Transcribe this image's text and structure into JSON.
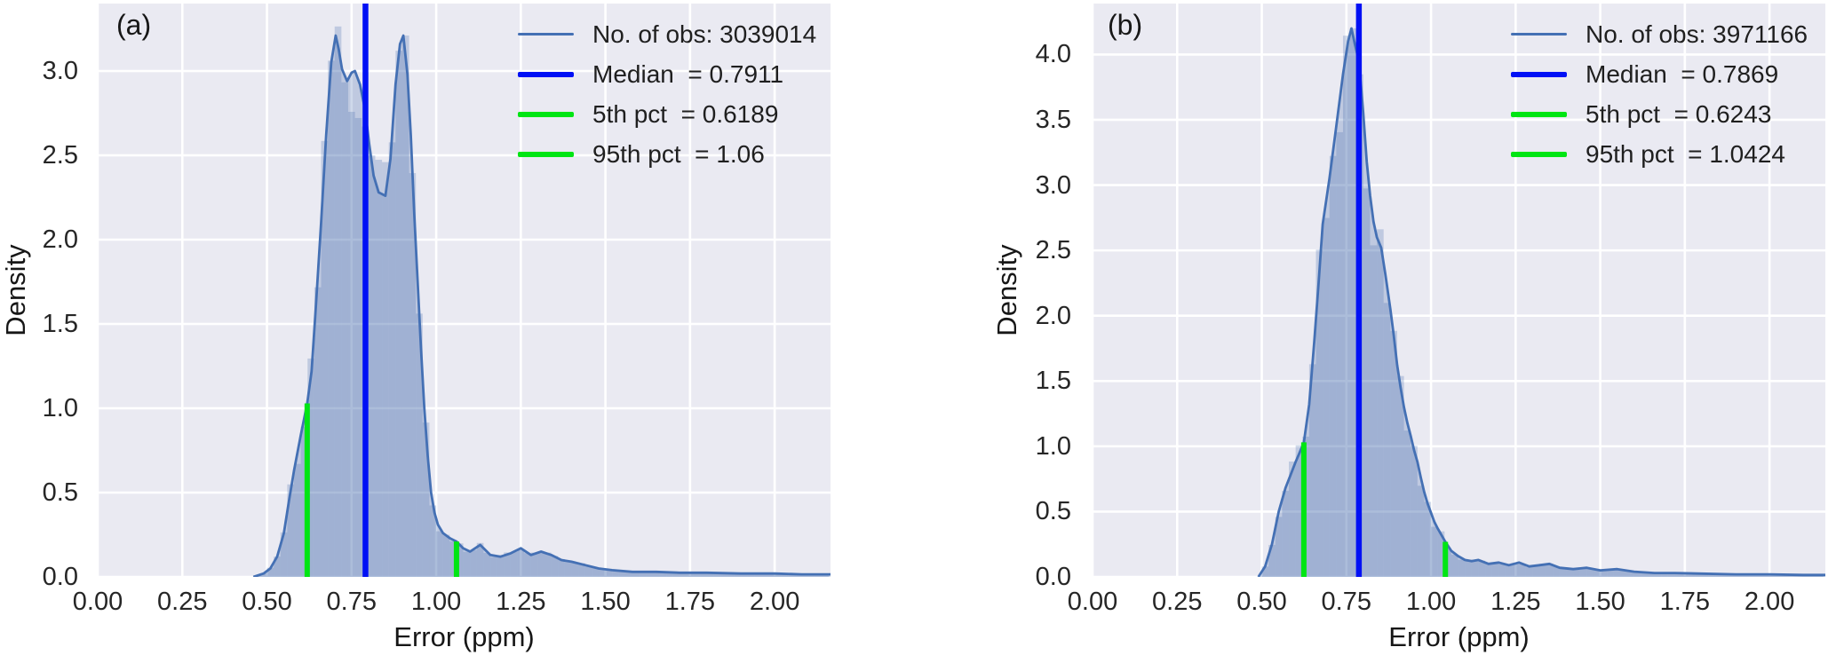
{
  "colors": {
    "figure_bg": "#ffffff",
    "plot_bg": "#eaeaf2",
    "grid": "#ffffff",
    "hist_fill": "rgba(76,114,176,0.27)",
    "kde_fill": "rgba(76,114,176,0.27)",
    "kde_line": "#4470b4",
    "median_line": "#0010f5",
    "pct_line": "#00e513",
    "text": "#262626"
  },
  "chart_data": [
    {
      "type": "area",
      "subtype": "histogram-with-kde-density",
      "panel_label": "(a)",
      "title": "",
      "xlabel": "Error (ppm)",
      "ylabel": "Density",
      "xlim": [
        0,
        2.165
      ],
      "ylim": [
        0,
        3.4
      ],
      "grid": true,
      "legend_position": "upper right",
      "xtick_labels": [
        "0.00",
        "0.25",
        "0.50",
        "0.75",
        "1.00",
        "1.25",
        "1.50",
        "1.75",
        "2.00"
      ],
      "ytick_labels": [
        "0.0",
        "0.5",
        "1.0",
        "1.5",
        "2.0",
        "2.5",
        "3.0"
      ],
      "n_obs": 3039014,
      "median": 0.7911,
      "pct5": 0.6189,
      "pct95": 1.06,
      "hist_bin_width": 0.02,
      "legend": {
        "items": [
          {
            "label": "No. of obs: 3039014",
            "color": "#4470b4",
            "line_weight": "thin"
          },
          {
            "label": "Median  = 0.7911",
            "color": "#0010f5",
            "line_weight": "thick"
          },
          {
            "label": "5th pct  = 0.6189",
            "color": "#00e513",
            "line_weight": "thick"
          },
          {
            "label": "95th pct  = 1.06",
            "color": "#00e513",
            "line_weight": "thick"
          }
        ]
      },
      "kde_points": [
        [
          0.46,
          0
        ],
        [
          0.49,
          0.02
        ],
        [
          0.51,
          0.05
        ],
        [
          0.53,
          0.12
        ],
        [
          0.55,
          0.26
        ],
        [
          0.565,
          0.45
        ],
        [
          0.58,
          0.63
        ],
        [
          0.6,
          0.84
        ],
        [
          0.619,
          1.03
        ],
        [
          0.632,
          1.22
        ],
        [
          0.645,
          1.62
        ],
        [
          0.66,
          2.1
        ],
        [
          0.675,
          2.62
        ],
        [
          0.69,
          3.05
        ],
        [
          0.703,
          3.21
        ],
        [
          0.712,
          3.13
        ],
        [
          0.722,
          3.01
        ],
        [
          0.737,
          2.94
        ],
        [
          0.75,
          2.99
        ],
        [
          0.76,
          3.0
        ],
        [
          0.775,
          2.92
        ],
        [
          0.79,
          2.77
        ],
        [
          0.802,
          2.57
        ],
        [
          0.815,
          2.38
        ],
        [
          0.83,
          2.28
        ],
        [
          0.85,
          2.26
        ],
        [
          0.865,
          2.48
        ],
        [
          0.88,
          2.92
        ],
        [
          0.893,
          3.16
        ],
        [
          0.903,
          3.21
        ],
        [
          0.915,
          2.98
        ],
        [
          0.925,
          2.62
        ],
        [
          0.935,
          2.16
        ],
        [
          0.945,
          1.76
        ],
        [
          0.955,
          1.36
        ],
        [
          0.965,
          1.0
        ],
        [
          0.975,
          0.72
        ],
        [
          0.985,
          0.5
        ],
        [
          0.995,
          0.38
        ],
        [
          1.005,
          0.31
        ],
        [
          1.02,
          0.26
        ],
        [
          1.04,
          0.23
        ],
        [
          1.06,
          0.21
        ],
        [
          1.08,
          0.17
        ],
        [
          1.1,
          0.15
        ],
        [
          1.13,
          0.19
        ],
        [
          1.16,
          0.13
        ],
        [
          1.19,
          0.12
        ],
        [
          1.22,
          0.14
        ],
        [
          1.25,
          0.17
        ],
        [
          1.28,
          0.13
        ],
        [
          1.31,
          0.15
        ],
        [
          1.34,
          0.13
        ],
        [
          1.37,
          0.1
        ],
        [
          1.4,
          0.09
        ],
        [
          1.44,
          0.07
        ],
        [
          1.48,
          0.05
        ],
        [
          1.52,
          0.04
        ],
        [
          1.58,
          0.03
        ],
        [
          1.65,
          0.03
        ],
        [
          1.72,
          0.025
        ],
        [
          1.8,
          0.025
        ],
        [
          1.9,
          0.02
        ],
        [
          2.0,
          0.02
        ],
        [
          2.08,
          0.015
        ],
        [
          2.165,
          0.015
        ]
      ]
    },
    {
      "type": "area",
      "subtype": "histogram-with-kde-density",
      "panel_label": "(b)",
      "title": "",
      "xlabel": "Error (ppm)",
      "ylabel": "Density",
      "xlim": [
        0,
        2.165
      ],
      "ylim": [
        0,
        4.39
      ],
      "grid": true,
      "legend_position": "upper right",
      "xtick_labels": [
        "0.00",
        "0.25",
        "0.50",
        "0.75",
        "1.00",
        "1.25",
        "1.50",
        "1.75",
        "2.00"
      ],
      "ytick_labels": [
        "0.0",
        "0.5",
        "1.0",
        "1.5",
        "2.0",
        "2.5",
        "3.0",
        "3.5",
        "4.0"
      ],
      "n_obs": 3971166,
      "median": 0.7869,
      "pct5": 0.6243,
      "pct95": 1.0424,
      "hist_bin_width": 0.02,
      "legend": {
        "items": [
          {
            "label": "No. of obs: 3971166",
            "color": "#4470b4",
            "line_weight": "thin"
          },
          {
            "label": "Median  = 0.7869",
            "color": "#0010f5",
            "line_weight": "thick"
          },
          {
            "label": "5th pct  = 0.6243",
            "color": "#00e513",
            "line_weight": "thick"
          },
          {
            "label": "95th pct  = 1.0424",
            "color": "#00e513",
            "line_weight": "thick"
          }
        ]
      },
      "kde_points": [
        [
          0.49,
          0
        ],
        [
          0.51,
          0.08
        ],
        [
          0.53,
          0.25
        ],
        [
          0.55,
          0.5
        ],
        [
          0.57,
          0.68
        ],
        [
          0.585,
          0.78
        ],
        [
          0.6,
          0.88
        ],
        [
          0.61,
          0.94
        ],
        [
          0.6243,
          1.03
        ],
        [
          0.64,
          1.32
        ],
        [
          0.655,
          1.8
        ],
        [
          0.668,
          2.25
        ],
        [
          0.68,
          2.7
        ],
        [
          0.7,
          3.05
        ],
        [
          0.72,
          3.45
        ],
        [
          0.74,
          3.85
        ],
        [
          0.755,
          4.1
        ],
        [
          0.765,
          4.2
        ],
        [
          0.775,
          4.08
        ],
        [
          0.787,
          3.95
        ],
        [
          0.8,
          3.55
        ],
        [
          0.81,
          3.18
        ],
        [
          0.82,
          2.92
        ],
        [
          0.83,
          2.72
        ],
        [
          0.84,
          2.6
        ],
        [
          0.853,
          2.52
        ],
        [
          0.865,
          2.32
        ],
        [
          0.88,
          2.05
        ],
        [
          0.89,
          1.85
        ],
        [
          0.9,
          1.62
        ],
        [
          0.91,
          1.45
        ],
        [
          0.92,
          1.3
        ],
        [
          0.93,
          1.18
        ],
        [
          0.94,
          1.08
        ],
        [
          0.95,
          0.97
        ],
        [
          0.96,
          0.88
        ],
        [
          0.97,
          0.76
        ],
        [
          0.98,
          0.65
        ],
        [
          0.99,
          0.56
        ],
        [
          1.0,
          0.49
        ],
        [
          1.01,
          0.42
        ],
        [
          1.02,
          0.37
        ],
        [
          1.042,
          0.27
        ],
        [
          1.06,
          0.2
        ],
        [
          1.08,
          0.16
        ],
        [
          1.1,
          0.13
        ],
        [
          1.12,
          0.12
        ],
        [
          1.14,
          0.13
        ],
        [
          1.17,
          0.1
        ],
        [
          1.2,
          0.11
        ],
        [
          1.23,
          0.09
        ],
        [
          1.26,
          0.11
        ],
        [
          1.29,
          0.08
        ],
        [
          1.32,
          0.09
        ],
        [
          1.35,
          0.1
        ],
        [
          1.38,
          0.07
        ],
        [
          1.42,
          0.06
        ],
        [
          1.46,
          0.07
        ],
        [
          1.5,
          0.05
        ],
        [
          1.55,
          0.06
        ],
        [
          1.6,
          0.04
        ],
        [
          1.66,
          0.03
        ],
        [
          1.72,
          0.03
        ],
        [
          1.8,
          0.025
        ],
        [
          1.9,
          0.02
        ],
        [
          2.0,
          0.02
        ],
        [
          2.1,
          0.015
        ],
        [
          2.165,
          0.015
        ]
      ]
    }
  ]
}
